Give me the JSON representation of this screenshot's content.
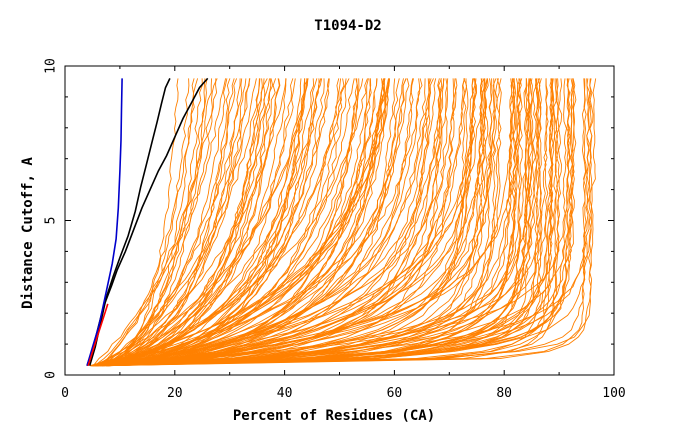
{
  "chart_data": {
    "type": "line",
    "title": "T1094-D2",
    "xlabel": "Percent of Residues (CA)",
    "ylabel": "Distance Cutoff, A",
    "xlim": [
      0,
      100
    ],
    "ylim": [
      0,
      10
    ],
    "x_ticks": [
      0,
      20,
      40,
      60,
      80,
      100
    ],
    "x_tick_labels": [
      "0",
      "20",
      "40",
      "60",
      "80",
      "100"
    ],
    "y_ticks": [
      0,
      5,
      10
    ],
    "y_tick_labels": [
      "0",
      "5",
      "10"
    ],
    "grid": false,
    "legend": "none",
    "colors": {
      "bundle": "#ff8000",
      "highlight_black": "#000000",
      "highlight_blue": "#0000cc",
      "highlight_red": "#ff0000",
      "axes": "#000000"
    },
    "bundle_series_count": 180,
    "series": [
      {
        "color": "#000000",
        "x": [
          4.0,
          5.0,
          6.0,
          7.0,
          8.5,
          9.5,
          11,
          12.5,
          14,
          15.5,
          17,
          18.5,
          20,
          21.5,
          23,
          24.5,
          26
        ],
        "y": [
          0.3,
          0.8,
          1.5,
          2.2,
          2.9,
          3.4,
          4.0,
          4.7,
          5.4,
          6.0,
          6.6,
          7.1,
          7.7,
          8.3,
          8.8,
          9.3,
          9.6
        ]
      },
      {
        "color": "#000000",
        "x": [
          4.5,
          5.5,
          6.5,
          7.5,
          8.8,
          10,
          11.5,
          12.8,
          13.8,
          14.8,
          15.8,
          16.8,
          17.6,
          18.3,
          19.1
        ],
        "y": [
          0.3,
          0.9,
          1.7,
          2.5,
          3.2,
          3.8,
          4.5,
          5.3,
          6.1,
          6.8,
          7.5,
          8.2,
          8.8,
          9.3,
          9.6
        ]
      },
      {
        "color": "#0000cc",
        "x": [
          4.0,
          5.0,
          6.2,
          7.4,
          8.6,
          9.3,
          9.7,
          10.0,
          10.2,
          10.3,
          10.4
        ],
        "y": [
          0.3,
          0.9,
          1.6,
          2.6,
          3.6,
          4.4,
          5.4,
          6.6,
          7.6,
          8.6,
          9.6
        ]
      },
      {
        "color": "#ff0000",
        "x": [
          4.2,
          5.1,
          6.0,
          6.9,
          7.8
        ],
        "y": [
          0.3,
          0.8,
          1.3,
          1.8,
          2.3
        ]
      }
    ]
  }
}
